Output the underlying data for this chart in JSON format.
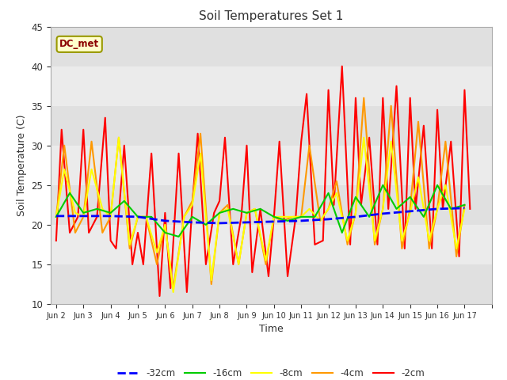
{
  "title": "Soil Temperatures Set 1",
  "xlabel": "Time",
  "ylabel": "Soil Temperature (C)",
  "ylim": [
    10,
    45
  ],
  "annotation": "DC_met",
  "background_color": "#ffffff",
  "plot_bg_color": "#e8e8e8",
  "band_colors": [
    "#e8e8e8",
    "#d8d8d8"
  ],
  "series": {
    "-32cm": {
      "color": "#0000ff",
      "linestyle": "--",
      "linewidth": 2.0,
      "x": [
        1,
        2,
        3,
        4,
        5,
        6,
        7,
        8,
        9,
        10,
        11,
        12,
        13,
        14,
        15,
        16
      ],
      "y": [
        21.1,
        21.1,
        21.1,
        21.0,
        20.5,
        20.3,
        20.2,
        20.3,
        20.4,
        20.5,
        20.7,
        21.0,
        21.4,
        21.7,
        22.0,
        22.1
      ]
    },
    "-16cm": {
      "color": "#00cc00",
      "linestyle": "-",
      "linewidth": 1.5,
      "x": [
        1,
        1.5,
        2,
        2.5,
        3,
        3.5,
        4,
        4.5,
        5,
        5.5,
        6,
        6.5,
        7,
        7.5,
        8,
        8.5,
        9,
        9.5,
        10,
        10.5,
        11,
        11.5,
        12,
        12.5,
        13,
        13.5,
        14,
        14.5,
        15,
        15.5,
        16
      ],
      "y": [
        21.0,
        24.0,
        21.5,
        22.0,
        21.5,
        23.0,
        21.0,
        21.0,
        19.0,
        18.5,
        21.0,
        20.0,
        21.5,
        22.0,
        21.5,
        22.0,
        21.0,
        20.5,
        21.0,
        21.0,
        24.0,
        19.0,
        23.5,
        21.0,
        25.0,
        22.0,
        23.5,
        21.0,
        25.0,
        22.0,
        22.5
      ]
    },
    "-8cm": {
      "color": "#ffff00",
      "linestyle": "-",
      "linewidth": 1.5,
      "x": [
        1,
        1.3,
        1.7,
        2,
        2.3,
        2.7,
        3,
        3.3,
        3.7,
        4,
        4.3,
        4.7,
        5,
        5.3,
        5.7,
        6,
        6.3,
        6.7,
        7,
        7.3,
        7.7,
        8,
        8.3,
        8.7,
        9,
        9.3,
        9.7,
        10,
        10.3,
        10.7,
        11,
        11.3,
        11.7,
        12,
        12.3,
        12.7,
        13,
        13.3,
        13.7,
        14,
        14.3,
        14.7,
        15,
        15.3,
        15.7,
        16
      ],
      "y": [
        21.0,
        27.0,
        21.5,
        21.0,
        27.0,
        22.0,
        21.0,
        31.0,
        17.5,
        21.0,
        21.0,
        16.5,
        20.0,
        11.5,
        21.0,
        22.5,
        29.0,
        13.0,
        21.5,
        22.0,
        15.0,
        21.5,
        22.0,
        15.5,
        21.0,
        21.0,
        21.0,
        21.0,
        22.0,
        20.5,
        22.0,
        24.0,
        18.0,
        21.5,
        31.0,
        18.0,
        22.0,
        30.5,
        18.0,
        21.5,
        26.0,
        18.0,
        22.0,
        25.0,
        17.0,
        22.0
      ]
    },
    "-4cm": {
      "color": "#ff9900",
      "linestyle": "-",
      "linewidth": 1.5,
      "x": [
        1,
        1.3,
        1.7,
        2,
        2.3,
        2.7,
        3,
        3.3,
        3.7,
        4,
        4.3,
        4.7,
        5,
        5.3,
        5.7,
        6,
        6.3,
        6.7,
        7,
        7.3,
        7.7,
        8,
        8.3,
        8.7,
        9,
        9.3,
        9.7,
        10,
        10.3,
        10.7,
        11,
        11.3,
        11.7,
        12,
        12.3,
        12.7,
        13,
        13.3,
        13.7,
        14,
        14.3,
        14.7,
        15,
        15.3,
        15.7,
        16
      ],
      "y": [
        21.0,
        30.0,
        19.0,
        21.0,
        30.5,
        19.0,
        21.0,
        31.0,
        17.0,
        21.0,
        21.0,
        15.0,
        20.0,
        12.0,
        21.0,
        23.0,
        31.5,
        12.5,
        21.5,
        22.5,
        15.0,
        21.5,
        22.0,
        15.0,
        21.0,
        20.5,
        21.0,
        21.0,
        30.0,
        20.5,
        22.0,
        25.5,
        17.5,
        21.5,
        36.0,
        17.5,
        22.0,
        35.0,
        17.0,
        22.0,
        33.0,
        17.0,
        22.0,
        30.5,
        16.0,
        22.5
      ]
    },
    "-2cm": {
      "color": "#ff0000",
      "linestyle": "-",
      "linewidth": 1.5,
      "x": [
        1,
        1.2,
        1.5,
        1.8,
        2,
        2.2,
        2.5,
        2.8,
        3,
        3.2,
        3.5,
        3.8,
        4,
        4.2,
        4.5,
        4.8,
        5,
        5.2,
        5.5,
        5.8,
        6,
        6.2,
        6.5,
        6.8,
        7,
        7.2,
        7.5,
        7.8,
        8,
        8.2,
        8.5,
        8.8,
        9,
        9.2,
        9.5,
        9.8,
        10,
        10.2,
        10.5,
        10.8,
        11,
        11.2,
        11.5,
        11.8,
        12,
        12.2,
        12.5,
        12.8,
        13,
        13.2,
        13.5,
        13.8,
        14,
        14.2,
        14.5,
        14.8,
        15,
        15.2,
        15.5,
        15.8,
        16,
        16.2
      ],
      "y": [
        18.0,
        32.0,
        19.0,
        21.0,
        32.0,
        19.0,
        21.0,
        33.5,
        18.0,
        17.0,
        30.0,
        15.0,
        19.0,
        15.0,
        29.0,
        11.0,
        21.5,
        12.0,
        29.0,
        11.5,
        22.5,
        31.5,
        15.0,
        21.5,
        23.0,
        31.0,
        15.0,
        21.0,
        30.0,
        14.0,
        22.0,
        13.5,
        21.0,
        30.5,
        13.5,
        21.0,
        30.5,
        36.5,
        17.5,
        18.0,
        37.0,
        22.5,
        40.0,
        17.5,
        36.0,
        22.5,
        31.0,
        17.5,
        36.0,
        22.0,
        37.5,
        17.0,
        36.0,
        22.0,
        32.5,
        17.0,
        34.5,
        22.0,
        30.5,
        16.0,
        37.0,
        22.0
      ]
    }
  },
  "xtick_positions": [
    1,
    2,
    3,
    4,
    5,
    6,
    7,
    8,
    9,
    10,
    11,
    12,
    13,
    14,
    15,
    16,
    17
  ],
  "xtick_labels": [
    "Jun 2",
    "Jun 3",
    "Jun 4",
    "Jun 5",
    "Jun 6",
    "Jun 7",
    "Jun 8",
    "Jun 9",
    "Jun 10",
    "Jun 11",
    "Jun 12",
    "Jun 13",
    "Jun 14",
    "Jun 15",
    "Jun 16",
    "Jun 17",
    ""
  ],
  "xlim": [
    0.8,
    16.8
  ],
  "ytick_positions": [
    10,
    15,
    20,
    25,
    30,
    35,
    40,
    45
  ],
  "horizontal_bands": [
    [
      10,
      15,
      "#e0e0e0"
    ],
    [
      15,
      20,
      "#ebebeb"
    ],
    [
      20,
      25,
      "#e0e0e0"
    ],
    [
      25,
      30,
      "#ebebeb"
    ],
    [
      30,
      35,
      "#e0e0e0"
    ],
    [
      35,
      40,
      "#ebebeb"
    ],
    [
      40,
      45,
      "#e0e0e0"
    ]
  ]
}
